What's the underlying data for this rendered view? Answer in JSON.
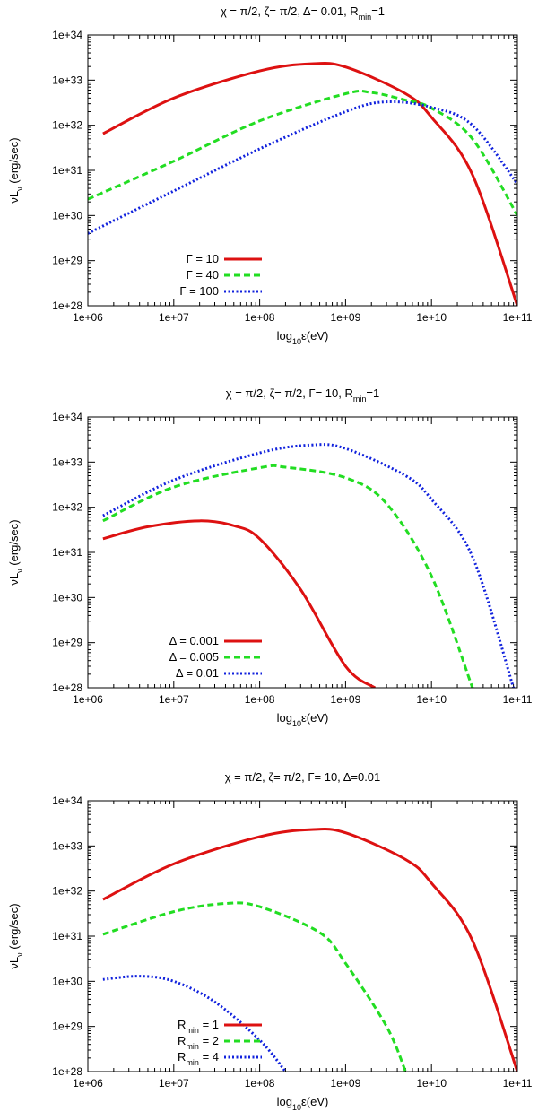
{
  "chart_data": [
    {
      "type": "line",
      "title_parts": [
        "χ = π/2, ζ= π/2, Δ= 0.01, R",
        "min",
        "=1"
      ],
      "xlabel_parts": [
        "log",
        "10",
        "ε(eV)"
      ],
      "ylabel_parts": [
        "νL",
        "ν",
        " (erg/sec)"
      ],
      "x_scale": "log",
      "y_scale": "log",
      "xlim": [
        1000000.0,
        100000000000.0
      ],
      "ylim": [
        1e+28,
        1e+34
      ],
      "x_ticks": [
        "1e+06",
        "1e+07",
        "1e+08",
        "1e+09",
        "1e+10",
        "1e+11"
      ],
      "y_ticks": [
        "1e+28",
        "1e+29",
        "1e+30",
        "1e+31",
        "1e+32",
        "1e+33",
        "1e+34"
      ],
      "legend_position": "bottom-left",
      "series": [
        {
          "name_parts": [
            "Γ = 10",
            "",
            ""
          ],
          "color": "#dd1111",
          "dash": "solid",
          "points": [
            [
              1500000.0,
              6.5e+31
            ],
            [
              10000000.0,
              4e+32
            ],
            [
              100000000.0,
              1.6e+33
            ],
            [
              400000000.0,
              2.3e+33
            ],
            [
              1000000000.0,
              1.95e+33
            ],
            [
              5000000000.0,
              5e+32
            ],
            [
              10000000000.0,
              1.5e+32
            ],
            [
              30000000000.0,
              8e+30
            ],
            [
              100000000000.0,
              1e+28
            ]
          ]
        },
        {
          "name_parts": [
            "Γ = 40",
            "",
            ""
          ],
          "color": "#22dd22",
          "dash": "dashed",
          "points": [
            [
              1000000.0,
              2.3e+30
            ],
            [
              10000000.0,
              1.6e+31
            ],
            [
              100000000.0,
              1.25e+32
            ],
            [
              1000000000.0,
              5e+32
            ],
            [
              2000000000.0,
              5.3e+32
            ],
            [
              5000000000.0,
              3.6e+32
            ],
            [
              10000000000.0,
              2.4e+32
            ],
            [
              30000000000.0,
              5e+31
            ],
            [
              100000000000.0,
              1e+30
            ]
          ]
        },
        {
          "name_parts": [
            "Γ = 100",
            "",
            ""
          ],
          "color": "#1122dd",
          "dash": "dotted",
          "points": [
            [
              1000000.0,
              4e+29
            ],
            [
              10000000.0,
              3.5e+30
            ],
            [
              100000000.0,
              3e+31
            ],
            [
              1000000000.0,
              2e+32
            ],
            [
              3000000000.0,
              3.3e+32
            ],
            [
              10000000000.0,
              2.5e+32
            ],
            [
              30000000000.0,
              1e+32
            ],
            [
              100000000000.0,
              5e+30
            ]
          ]
        }
      ]
    },
    {
      "type": "line",
      "title_parts": [
        "χ = π/2, ζ= π/2, Γ= 10, R",
        "min",
        "=1"
      ],
      "xlabel_parts": [
        "log",
        "10",
        "ε(eV)"
      ],
      "ylabel_parts": [
        "νL",
        "ν",
        " (erg/sec)"
      ],
      "x_scale": "log",
      "y_scale": "log",
      "xlim": [
        1000000.0,
        100000000000.0
      ],
      "ylim": [
        1e+28,
        1e+34
      ],
      "x_ticks": [
        "1e+06",
        "1e+07",
        "1e+08",
        "1e+09",
        "1e+10",
        "1e+11"
      ],
      "y_ticks": [
        "1e+28",
        "1e+29",
        "1e+30",
        "1e+31",
        "1e+32",
        "1e+33",
        "1e+34"
      ],
      "legend_position": "bottom-left",
      "series": [
        {
          "name_parts": [
            "Δ = 0.001",
            "",
            ""
          ],
          "color": "#dd1111",
          "dash": "solid",
          "points": [
            [
              1500000.0,
              2e+31
            ],
            [
              5000000.0,
              3.7e+31
            ],
            [
              20000000.0,
              5e+31
            ],
            [
              50000000.0,
              3.9e+31
            ],
            [
              100000000.0,
              2e+31
            ],
            [
              300000000.0,
              1.5e+30
            ],
            [
              1000000000.0,
              3e+28
            ],
            [
              2200000000.0,
              1e+28
            ]
          ]
        },
        {
          "name_parts": [
            "Δ = 0.005",
            "",
            ""
          ],
          "color": "#22dd22",
          "dash": "dashed",
          "points": [
            [
              1500000.0,
              5e+31
            ],
            [
              10000000.0,
              2.8e+32
            ],
            [
              100000000.0,
              7.5e+32
            ],
            [
              200000000.0,
              7.7e+32
            ],
            [
              1000000000.0,
              4.5e+32
            ],
            [
              3000000000.0,
              1.2e+32
            ],
            [
              10000000000.0,
              3e+30
            ],
            [
              30000000000.0,
              1e+28
            ]
          ]
        },
        {
          "name_parts": [
            "Δ = 0.01",
            "",
            ""
          ],
          "color": "#1122dd",
          "dash": "dotted",
          "points": [
            [
              1500000.0,
              6.5e+31
            ],
            [
              10000000.0,
              4e+32
            ],
            [
              100000000.0,
              1.6e+33
            ],
            [
              400000000.0,
              2.4e+33
            ],
            [
              1000000000.0,
              2e+33
            ],
            [
              5000000000.0,
              5e+32
            ],
            [
              10000000000.0,
              1.5e+32
            ],
            [
              30000000000.0,
              8e+30
            ],
            [
              90000000000.0,
              1e+28
            ]
          ]
        }
      ]
    },
    {
      "type": "line",
      "title_parts": [
        "χ = π/2, ζ= π/2, Γ= 10, Δ=0.01",
        "",
        ""
      ],
      "xlabel_parts": [
        "log",
        "10",
        "ε(eV)"
      ],
      "ylabel_parts": [
        "νL",
        "ν",
        " (erg/sec)"
      ],
      "x_scale": "log",
      "y_scale": "log",
      "xlim": [
        1000000.0,
        100000000000.0
      ],
      "ylim": [
        1e+28,
        1e+34
      ],
      "x_ticks": [
        "1e+06",
        "1e+07",
        "1e+08",
        "1e+09",
        "1e+10",
        "1e+11"
      ],
      "y_ticks": [
        "1e+28",
        "1e+29",
        "1e+30",
        "1e+31",
        "1e+32",
        "1e+33",
        "1e+34"
      ],
      "legend_position": "bottom-left",
      "series": [
        {
          "name_parts": [
            "R",
            "min",
            " = 1"
          ],
          "color": "#dd1111",
          "dash": "solid",
          "points": [
            [
              1500000.0,
              6.5e+31
            ],
            [
              10000000.0,
              4e+32
            ],
            [
              100000000.0,
              1.6e+33
            ],
            [
              400000000.0,
              2.3e+33
            ],
            [
              1000000000.0,
              1.95e+33
            ],
            [
              5000000000.0,
              5e+32
            ],
            [
              10000000000.0,
              1.5e+32
            ],
            [
              30000000000.0,
              8e+30
            ],
            [
              100000000000.0,
              1e+28
            ]
          ]
        },
        {
          "name_parts": [
            "R",
            "min",
            " = 2"
          ],
          "color": "#22dd22",
          "dash": "dashed",
          "points": [
            [
              1500000.0,
              1.1e+31
            ],
            [
              10000000.0,
              3.5e+31
            ],
            [
              40000000.0,
              5.3e+31
            ],
            [
              100000000.0,
              4.5e+31
            ],
            [
              500000000.0,
              1.2e+31
            ],
            [
              1000000000.0,
              2.5e+30
            ],
            [
              3000000000.0,
              1e+29
            ],
            [
              5000000000.0,
              1e+28
            ]
          ]
        },
        {
          "name_parts": [
            "R",
            "min",
            " = 4"
          ],
          "color": "#1122dd",
          "dash": "dotted",
          "points": [
            [
              1500000.0,
              1.1e+30
            ],
            [
              4000000.0,
              1.3e+30
            ],
            [
              10000000.0,
              1e+30
            ],
            [
              30000000.0,
              3.5e+29
            ],
            [
              100000000.0,
              5e+28
            ],
            [
              200000000.0,
              1e+28
            ]
          ]
        }
      ]
    }
  ]
}
